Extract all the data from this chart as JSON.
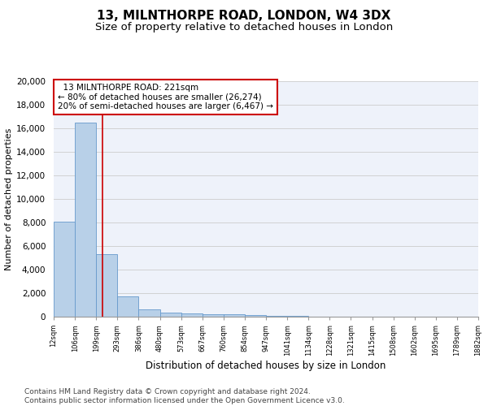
{
  "title": "13, MILNTHORPE ROAD, LONDON, W4 3DX",
  "subtitle": "Size of property relative to detached houses in London",
  "xlabel": "Distribution of detached houses by size in London",
  "ylabel": "Number of detached properties",
  "bar_color": "#b8d0e8",
  "bar_edge_color": "#6699cc",
  "bar_heights": [
    8100,
    16500,
    5300,
    1750,
    650,
    350,
    275,
    200,
    175,
    150,
    75,
    50,
    25,
    15,
    10,
    5,
    3,
    2,
    1,
    1
  ],
  "x_labels": [
    "12sqm",
    "106sqm",
    "199sqm",
    "293sqm",
    "386sqm",
    "480sqm",
    "573sqm",
    "667sqm",
    "760sqm",
    "854sqm",
    "947sqm",
    "1041sqm",
    "1134sqm",
    "1228sqm",
    "1321sqm",
    "1415sqm",
    "1508sqm",
    "1602sqm",
    "1695sqm",
    "1789sqm",
    "1882sqm"
  ],
  "red_line_x": 1.8,
  "annotation_text": "  13 MILNTHORPE ROAD: 221sqm  \n← 80% of detached houses are smaller (26,274)\n20% of semi-detached houses are larger (6,467) →",
  "annotation_box_color": "#cc0000",
  "ylim": [
    0,
    20000
  ],
  "yticks": [
    0,
    2000,
    4000,
    6000,
    8000,
    10000,
    12000,
    14000,
    16000,
    18000,
    20000
  ],
  "grid_color": "#cccccc",
  "background_color": "#eef2fa",
  "footer_text": "Contains HM Land Registry data © Crown copyright and database right 2024.\nContains public sector information licensed under the Open Government Licence v3.0.",
  "title_fontsize": 11,
  "subtitle_fontsize": 9.5,
  "annotation_fontsize": 7.5,
  "footer_fontsize": 6.5,
  "ylabel_fontsize": 8,
  "xlabel_fontsize": 8.5,
  "ytick_fontsize": 7.5,
  "xtick_fontsize": 6
}
